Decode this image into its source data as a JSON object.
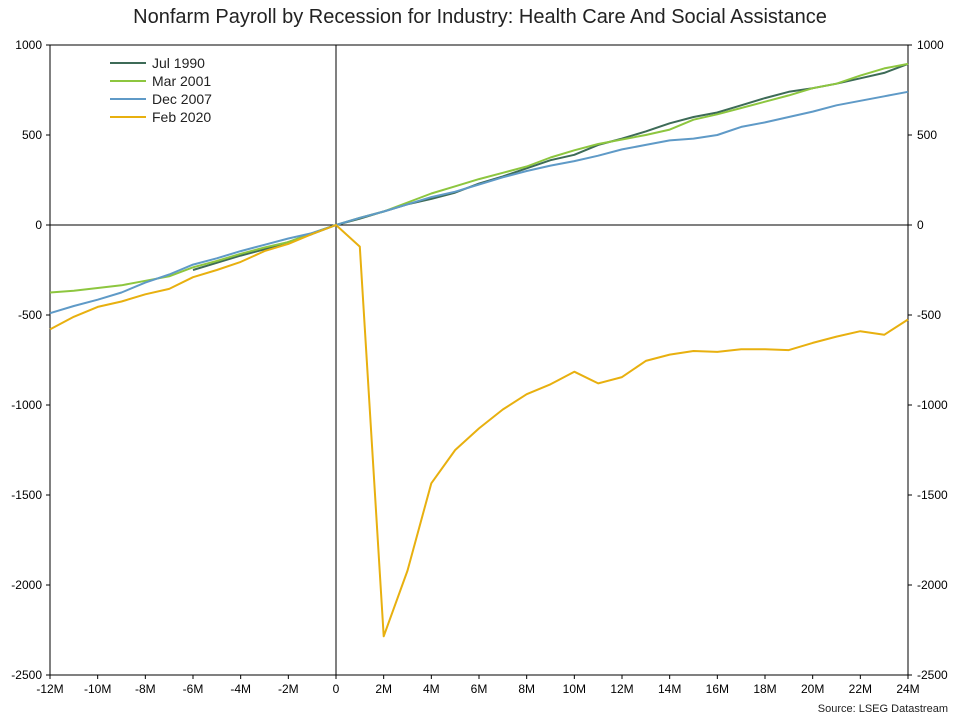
{
  "chart_data": {
    "type": "line",
    "title": "Nonfarm Payroll by Recession for Industry: Health Care And Social Assistance",
    "source": "Source: LSEG Datastream",
    "xlabel": "",
    "ylabel": "",
    "xlim": [
      -12,
      24
    ],
    "ylim": [
      -2500,
      1000
    ],
    "x_ticks": [
      -12,
      -10,
      -8,
      -6,
      -4,
      -2,
      0,
      2,
      4,
      6,
      8,
      10,
      12,
      14,
      16,
      18,
      20,
      22,
      24
    ],
    "x_tick_labels": [
      "-12M",
      "-10M",
      "-8M",
      "-6M",
      "-4M",
      "-2M",
      "0",
      "2M",
      "4M",
      "6M",
      "8M",
      "10M",
      "12M",
      "14M",
      "16M",
      "18M",
      "20M",
      "22M",
      "24M"
    ],
    "y_ticks": [
      -2500,
      -2000,
      -1500,
      -1000,
      -500,
      0,
      500,
      1000
    ],
    "y_tick_labels": [
      "-2500",
      "-2000",
      "-1500",
      "-1000",
      "-500",
      "0",
      "500",
      "1000"
    ],
    "legend_position": "top-left",
    "grid": false,
    "series": [
      {
        "name": "Jul 1990",
        "color": "#3d6b57",
        "x": [
          -6,
          -5,
          -4,
          -3,
          -2,
          -1,
          0,
          1,
          2,
          3,
          4,
          5,
          6,
          7,
          8,
          9,
          10,
          11,
          12,
          13,
          14,
          15,
          16,
          17,
          18,
          19,
          20,
          21,
          22,
          23,
          24
        ],
        "y": [
          -250,
          -210,
          -170,
          -135,
          -95,
          -50,
          0,
          35,
          75,
          115,
          145,
          180,
          230,
          270,
          315,
          360,
          390,
          445,
          480,
          520,
          565,
          600,
          625,
          665,
          705,
          740,
          760,
          785,
          815,
          845,
          895
        ]
      },
      {
        "name": "Mar 2001",
        "color": "#8dc63f",
        "x": [
          -12,
          -11,
          -10,
          -9,
          -8,
          -7,
          -6,
          -5,
          -4,
          -3,
          -2,
          -1,
          0,
          1,
          2,
          3,
          4,
          5,
          6,
          7,
          8,
          9,
          10,
          11,
          12,
          13,
          14,
          15,
          16,
          17,
          18,
          19,
          20,
          21,
          22,
          23,
          24
        ],
        "y": [
          -375,
          -365,
          -350,
          -335,
          -310,
          -285,
          -235,
          -200,
          -160,
          -125,
          -95,
          -45,
          0,
          40,
          75,
          125,
          175,
          215,
          255,
          290,
          325,
          375,
          415,
          450,
          475,
          500,
          530,
          585,
          615,
          650,
          685,
          720,
          760,
          785,
          830,
          870,
          895
        ]
      },
      {
        "name": "Dec 2007",
        "color": "#5f9ac7",
        "x": [
          -12,
          -11,
          -10,
          -9,
          -8,
          -7,
          -6,
          -5,
          -4,
          -3,
          -2,
          -1,
          0,
          1,
          2,
          3,
          4,
          5,
          6,
          7,
          8,
          9,
          10,
          11,
          12,
          13,
          14,
          15,
          16,
          17,
          18,
          19,
          20,
          21,
          22,
          23,
          24
        ],
        "y": [
          -490,
          -450,
          -415,
          -375,
          -320,
          -275,
          -220,
          -185,
          -145,
          -110,
          -75,
          -45,
          0,
          40,
          75,
          115,
          155,
          185,
          225,
          265,
          300,
          330,
          355,
          385,
          420,
          445,
          470,
          480,
          500,
          545,
          570,
          600,
          630,
          665,
          690,
          715,
          740
        ]
      },
      {
        "name": "Feb 2020",
        "color": "#e8b00f",
        "x": [
          -12,
          -11,
          -10,
          -9,
          -8,
          -7,
          -6,
          -5,
          -4,
          -3,
          -2,
          -1,
          0,
          1,
          2,
          3,
          4,
          5,
          6,
          7,
          8,
          9,
          10,
          11,
          12,
          13,
          14,
          15,
          16,
          17,
          18,
          19,
          20,
          21,
          22,
          23,
          24
        ],
        "y": [
          -580,
          -510,
          -455,
          -425,
          -385,
          -355,
          -290,
          -250,
          -205,
          -145,
          -105,
          -50,
          0,
          -120,
          -2285,
          -1920,
          -1435,
          -1250,
          -1130,
          -1025,
          -940,
          -885,
          -815,
          -880,
          -845,
          -755,
          -720,
          -700,
          -705,
          -690,
          -690,
          -695,
          -655,
          -620,
          -590,
          -610,
          -525
        ]
      }
    ]
  }
}
